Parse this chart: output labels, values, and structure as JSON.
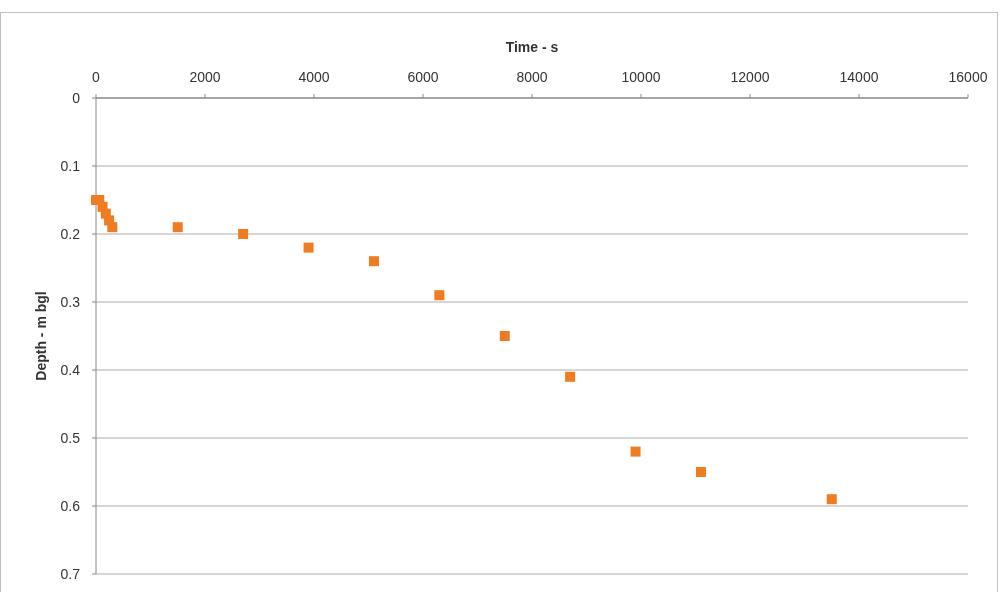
{
  "chart_data": {
    "type": "scatter",
    "xlabel": "Time - s",
    "ylabel": "Depth - m bgl",
    "x": [
      0,
      60,
      120,
      180,
      240,
      300,
      1500,
      2700,
      3900,
      5100,
      6300,
      7500,
      8700,
      9900,
      11100,
      13500
    ],
    "series": [
      {
        "color": "#f07c22",
        "values": [
          0.15,
          0.15,
          0.16,
          0.17,
          0.18,
          0.19,
          0.19,
          0.2,
          0.22,
          0.24,
          0.29,
          0.35,
          0.41,
          0.52,
          0.55,
          0.59
        ]
      }
    ],
    "xlim": [
      0,
      16000
    ],
    "xticks": [
      0,
      2000,
      4000,
      6000,
      8000,
      10000,
      12000,
      14000,
      16000
    ],
    "ylim": [
      0.7,
      0
    ],
    "yticks": [
      0,
      0.1,
      0.2,
      0.3,
      0.4,
      0.5,
      0.6,
      0.7
    ],
    "grid": "y",
    "marker": "square"
  }
}
